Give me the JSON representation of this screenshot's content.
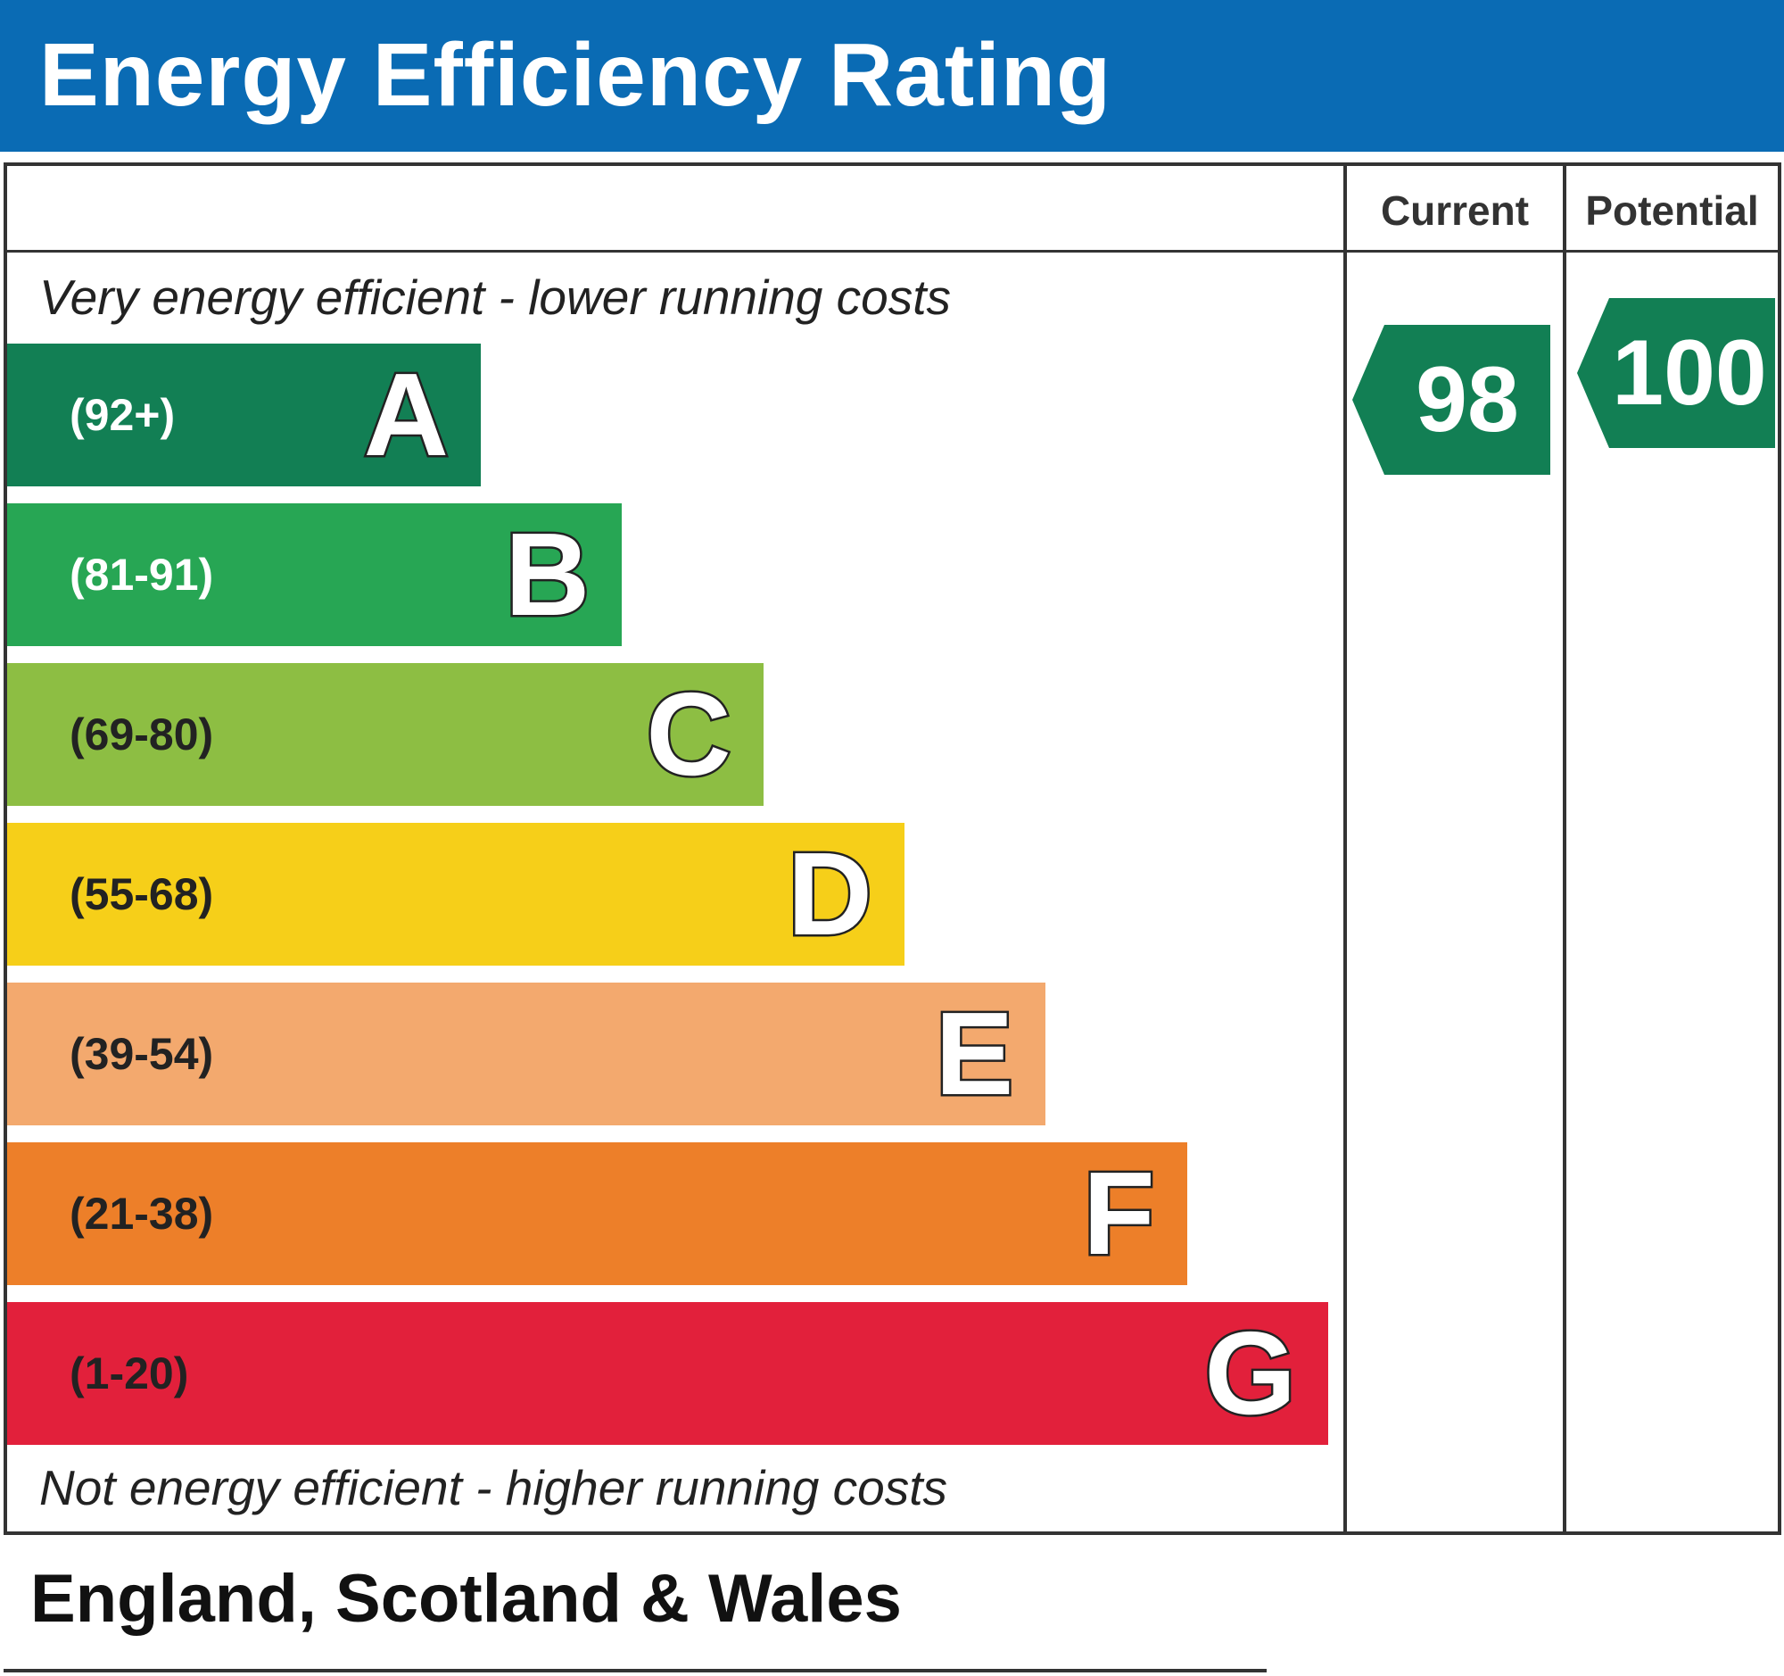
{
  "header": {
    "title": "Energy Efficiency Rating"
  },
  "table": {
    "current_label": "Current",
    "potential_label": "Potential",
    "top_note": "Very energy efficient - lower running costs",
    "bottom_note": "Not energy efficient - higher running costs",
    "region": "England, Scotland & Wales"
  },
  "chart_data": {
    "type": "bar",
    "title": "Energy Efficiency Rating",
    "bands": [
      {
        "letter": "A",
        "range": "(92+)",
        "min": 92,
        "max": 100,
        "color": "#127f54",
        "text_color": "#ffffff"
      },
      {
        "letter": "B",
        "range": "(81-91)",
        "min": 81,
        "max": 91,
        "color": "#27a654",
        "text_color": "#ffffff"
      },
      {
        "letter": "C",
        "range": "(69-80)",
        "min": 69,
        "max": 80,
        "color": "#8dbe43",
        "text_color": "#222222"
      },
      {
        "letter": "D",
        "range": "(55-68)",
        "min": 55,
        "max": 68,
        "color": "#f6cf19",
        "text_color": "#222222"
      },
      {
        "letter": "E",
        "range": "(39-54)",
        "min": 39,
        "max": 54,
        "color": "#f3a96e",
        "text_color": "#222222"
      },
      {
        "letter": "F",
        "range": "(21-38)",
        "min": 21,
        "max": 38,
        "color": "#ed7f29",
        "text_color": "#222222"
      },
      {
        "letter": "G",
        "range": "(1-20)",
        "min": 1,
        "max": 20,
        "color": "#e2203b",
        "text_color": "#222222"
      }
    ],
    "current": {
      "value": "98",
      "band": "A",
      "color": "#127f54"
    },
    "potential": {
      "value": "100",
      "band": "A",
      "color": "#127f54"
    }
  }
}
